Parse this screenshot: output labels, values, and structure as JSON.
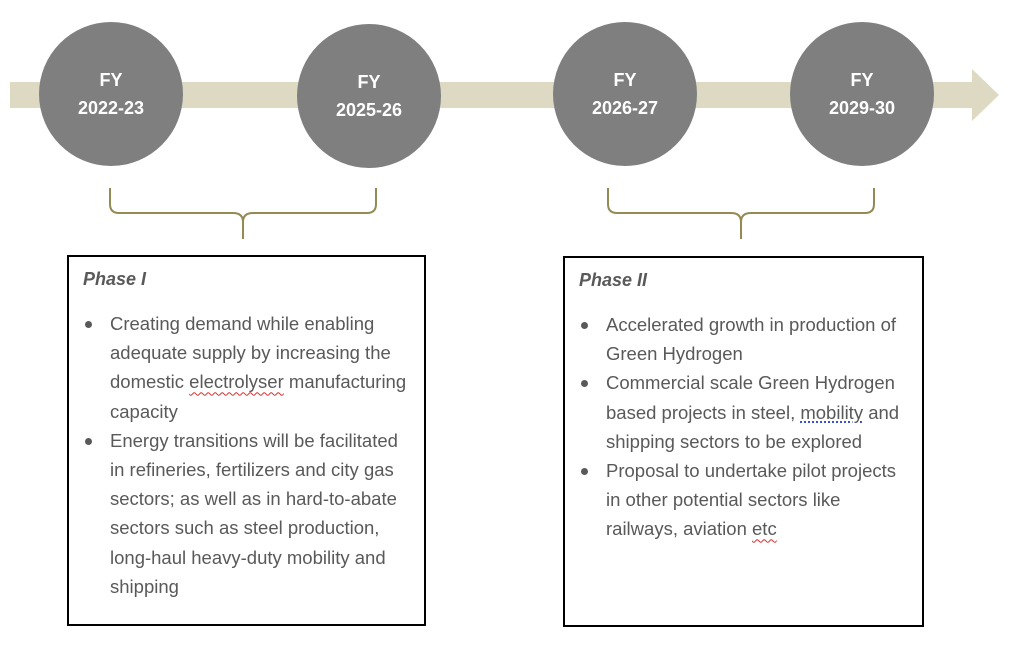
{
  "colors": {
    "arrow": "#ddd9c3",
    "circle": "#7f7f7f",
    "brace": "#948a54",
    "text": "#595959"
  },
  "milestones": [
    {
      "line1": "FY",
      "line2": "2022-23"
    },
    {
      "line1": "FY",
      "line2": "2025-26"
    },
    {
      "line1": "FY",
      "line2": "2026-27"
    },
    {
      "line1": "FY",
      "line2": "2029-30"
    }
  ],
  "phases": [
    {
      "title": "Phase I",
      "bullets": [
        {
          "pre": "Creating demand while enabling adequate supply by increasing the domestic ",
          "mark": "electrolyser",
          "post": " manufacturing capacity"
        },
        {
          "pre": "Energy transitions will be facilitated in refineries, fertilizers and city gas sectors; as well as in hard-to-abate sectors such as steel production, long-haul heavy-duty mobility and shipping",
          "mark": "",
          "post": ""
        }
      ]
    },
    {
      "title": "Phase II",
      "bullets": [
        {
          "pre": "Accelerated growth in production of Green Hydrogen",
          "mark": "",
          "post": ""
        },
        {
          "pre": "Commercial scale Green Hydrogen based projects in steel, ",
          "mark": "mobility",
          "post": " and shipping sectors to be explored"
        },
        {
          "pre": "Proposal to undertake pilot projects in other potential sectors like railways, aviation ",
          "mark": "etc",
          "post": ""
        }
      ]
    }
  ]
}
